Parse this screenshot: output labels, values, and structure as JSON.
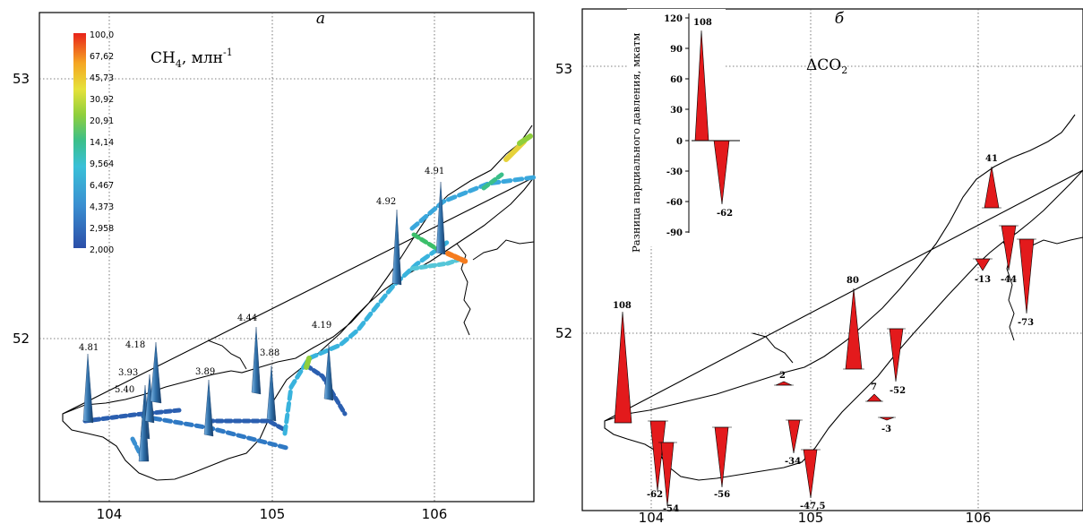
{
  "panel_a": {
    "letter": "а",
    "legend_title_base": "CH",
    "legend_title_sub": "4",
    "legend_title_unit": ", млн",
    "legend_title_sup": "-1",
    "colorbar_ticks": [
      "100,0",
      "67,62",
      "45,73",
      "30,92",
      "20,91",
      "14,14",
      "9,564",
      "6,467",
      "4,373",
      "2,958",
      "2,000"
    ],
    "lat_ticks": [
      "53",
      "52"
    ],
    "lon_ticks": [
      "104",
      "105",
      "106"
    ],
    "spike_labels": [
      "4.81",
      "4.18",
      "3.93",
      "5.40",
      "3.89",
      "4.44",
      "3.88",
      "4.19",
      "4.92",
      "4.91"
    ]
  },
  "panel_b": {
    "letter": "б",
    "title": "ΔCO",
    "title_sub": "2",
    "inset_ylabel": "Разница парциального давления, мкатм",
    "inset_ticks": [
      "120",
      "90",
      "60",
      "30",
      "0",
      "-30",
      "-60",
      "-90"
    ],
    "inset_bar_labels": [
      "108",
      "-62"
    ],
    "lat_ticks": [
      "53",
      "52"
    ],
    "lon_ticks": [
      "104",
      "105",
      "106"
    ],
    "bar_labels": [
      "108",
      "-62",
      "-54",
      "-56",
      "2",
      "-34",
      "-47,5",
      "80",
      "-52",
      "7",
      "-3",
      "41",
      "-13",
      "-44",
      "-73"
    ]
  },
  "colors": {
    "spike": "#2f6fa8",
    "bar": "#e31a1c"
  }
}
